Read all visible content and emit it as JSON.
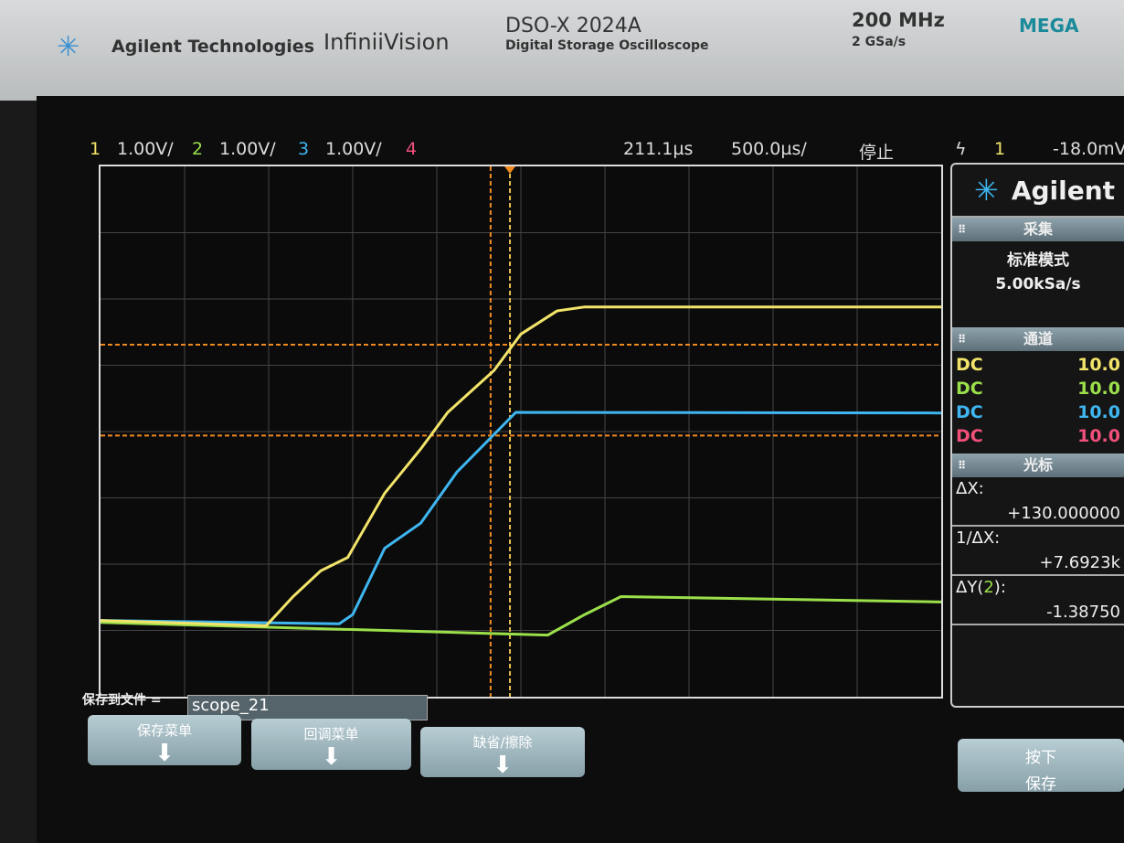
{
  "bezel": {
    "brand": "Agilent Technologies",
    "series": "InfiniiVision",
    "model": "DSO-X 2024A",
    "model_desc": "Digital Storage Oscilloscope",
    "bandwidth": "200 MHz",
    "sample_rate": "2 GSa/s",
    "badge": "MEGA"
  },
  "status": {
    "ch1_num": "1",
    "ch1_scale": "1.00V/",
    "ch2_num": "2",
    "ch2_scale": "1.00V/",
    "ch3_num": "3",
    "ch3_scale": "1.00V/",
    "ch4_num": "4",
    "time_pos": "211.1µs",
    "time_scale": "500.0µs/",
    "run_state": "停止",
    "trigger_icon": "edge-trigger-icon",
    "trigger_src": "1",
    "trigger_level": "-18.0mV"
  },
  "colors": {
    "ch1": "#f2e46a",
    "ch2": "#9be04a",
    "ch3": "#3fb6f0",
    "ch4": "#f0507a",
    "cursor": "#f08a20"
  },
  "waveforms_divisions": {
    "ch1": {
      "x": [
        0,
        1.97,
        2.29,
        2.62,
        2.94,
        3.38,
        3.81,
        4.13,
        4.68,
        5.0,
        5.43,
        5.76,
        10
      ],
      "y": [
        -2.85,
        -2.93,
        -2.49,
        -2.1,
        -1.9,
        -0.93,
        -0.26,
        0.29,
        0.92,
        1.47,
        1.82,
        1.88,
        1.88
      ]
    },
    "ch3": {
      "x": [
        0,
        2.84,
        3.0,
        3.38,
        3.81,
        4.24,
        4.94,
        10
      ],
      "y": [
        -2.85,
        -2.9,
        -2.76,
        -1.76,
        -1.38,
        -0.61,
        0.29,
        0.28
      ]
    },
    "ch2": {
      "x": [
        0,
        5.32,
        5.76,
        6.19,
        10
      ],
      "y": [
        -2.88,
        -3.07,
        -2.76,
        -2.49,
        -2.57
      ]
    },
    "cursors": {
      "x1": 4.64,
      "x2": 4.87,
      "y1": 1.31,
      "y2": -0.06
    }
  },
  "side": {
    "logo": "Agilent",
    "acq_title": "采集",
    "acq_mode": "标准模式",
    "acq_rate": "5.00kSa/s",
    "chan_title": "通道",
    "channels": [
      {
        "coupling": "DC",
        "value": "10.0"
      },
      {
        "coupling": "DC",
        "value": "10.0"
      },
      {
        "coupling": "DC",
        "value": "10.0"
      },
      {
        "coupling": "DC",
        "value": "10.0"
      }
    ],
    "cursor_title": "光标",
    "dx_label": "ΔX:",
    "dx_value": "+130.000000",
    "inv_label": "1/ΔX:",
    "inv_value": "+7.6923k",
    "dy_label_pre": "ΔY(",
    "dy_ch": "2",
    "dy_label_post": "):",
    "dy_value": "-1.38750"
  },
  "save": {
    "label": "保存到文件 =",
    "filename": "scope_21"
  },
  "softkeys": [
    {
      "label": "保存菜单"
    },
    {
      "label": "回调菜单"
    },
    {
      "label": "缺省/擦除"
    }
  ],
  "press_save": {
    "line1": "按下",
    "line2": "保存"
  }
}
